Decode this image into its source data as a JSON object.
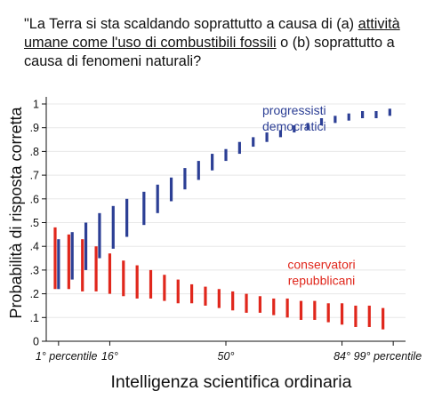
{
  "question": {
    "part1": "\"La Terra si sta scaldando soprattutto a causa di (a) ",
    "underlined": "attività umane come l'uso di combustibili fossili",
    "part2": " o (b) soprattutto a causa di fenomeni naturali?"
  },
  "chart_data": {
    "type": "range-bars",
    "title": "",
    "ylabel": "Probabilità di risposta corretta",
    "xlabel": "Intelligenza scientifica ordinaria",
    "ylim": [
      0,
      1
    ],
    "yticks": [
      0,
      0.1,
      0.2,
      0.3,
      0.4,
      0.5,
      0.6,
      0.7,
      0.8,
      0.9,
      1
    ],
    "ytick_labels": [
      "0",
      ".1",
      ".2",
      ".3",
      ".4",
      ".5",
      ".6",
      ".7",
      ".8",
      ".9",
      "1"
    ],
    "xlim": [
      0,
      1
    ],
    "xticks": [
      0.01,
      0.16,
      0.5,
      0.84,
      0.99
    ],
    "xtick_labels": [
      "1° percentile",
      "16°",
      "50°",
      "84°",
      "99° percentile"
    ],
    "colors": {
      "democrats": "#2c3f95",
      "republicans": "#e0271c"
    },
    "series": [
      {
        "name": "progressisti democratici",
        "label_lines": [
          "progressisti",
          "democratici"
        ],
        "color": "#2c3f95",
        "x": [
          0.01,
          0.05,
          0.09,
          0.13,
          0.17,
          0.21,
          0.26,
          0.3,
          0.34,
          0.38,
          0.42,
          0.46,
          0.5,
          0.54,
          0.58,
          0.62,
          0.66,
          0.7,
          0.74,
          0.78,
          0.82,
          0.86,
          0.9,
          0.94,
          0.98
        ],
        "low": [
          0.22,
          0.26,
          0.3,
          0.35,
          0.39,
          0.44,
          0.49,
          0.54,
          0.59,
          0.64,
          0.68,
          0.72,
          0.76,
          0.79,
          0.82,
          0.84,
          0.86,
          0.88,
          0.89,
          0.91,
          0.92,
          0.93,
          0.94,
          0.94,
          0.95
        ],
        "high": [
          0.43,
          0.46,
          0.5,
          0.54,
          0.57,
          0.6,
          0.63,
          0.66,
          0.69,
          0.73,
          0.76,
          0.79,
          0.81,
          0.84,
          0.86,
          0.88,
          0.89,
          0.91,
          0.92,
          0.94,
          0.95,
          0.96,
          0.97,
          0.97,
          0.98
        ]
      },
      {
        "name": "conservatori repubblicani",
        "label_lines": [
          "conservatori",
          "repubblicani"
        ],
        "color": "#e0271c",
        "x": [
          0.0,
          0.04,
          0.08,
          0.12,
          0.16,
          0.2,
          0.24,
          0.28,
          0.32,
          0.36,
          0.4,
          0.44,
          0.48,
          0.52,
          0.56,
          0.6,
          0.64,
          0.68,
          0.72,
          0.76,
          0.8,
          0.84,
          0.88,
          0.92,
          0.96
        ],
        "low": [
          0.22,
          0.22,
          0.21,
          0.21,
          0.2,
          0.19,
          0.18,
          0.18,
          0.17,
          0.16,
          0.16,
          0.15,
          0.14,
          0.13,
          0.12,
          0.12,
          0.11,
          0.1,
          0.09,
          0.09,
          0.08,
          0.07,
          0.06,
          0.06,
          0.05
        ],
        "high": [
          0.48,
          0.45,
          0.43,
          0.4,
          0.37,
          0.34,
          0.32,
          0.3,
          0.28,
          0.26,
          0.24,
          0.23,
          0.22,
          0.21,
          0.2,
          0.19,
          0.18,
          0.18,
          0.17,
          0.17,
          0.16,
          0.16,
          0.15,
          0.15,
          0.14
        ]
      }
    ]
  }
}
